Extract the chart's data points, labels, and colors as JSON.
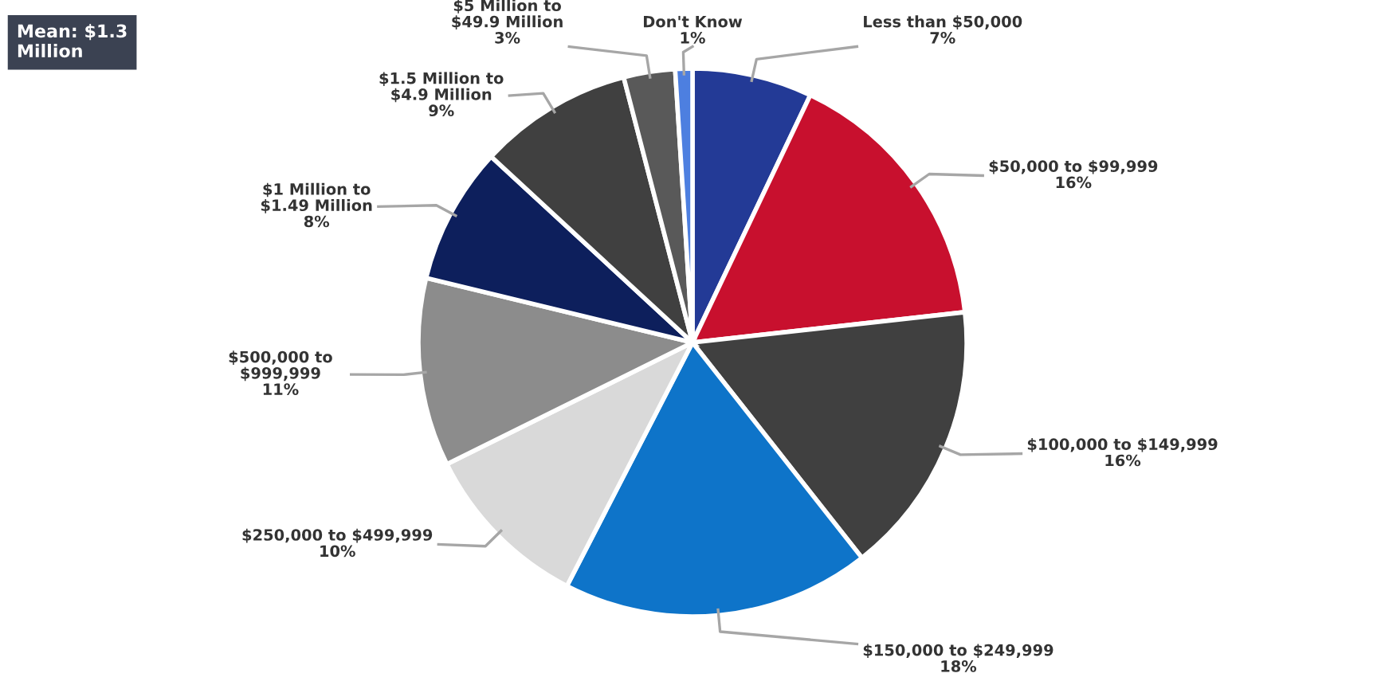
{
  "chart_data": {
    "type": "pie",
    "categories": [
      "Less than $50,000",
      "$50,000 to $99,999",
      "$100,000 to $149,999",
      "$150,000 to $249,999",
      "$250,000 to $499,999",
      "$500,000 to\n$999,999",
      "$1 Million to\n$1.49 Million",
      "$1.5 Million to\n$4.9 Million",
      "$5 Million to\n$49.9 Million",
      "Don't Know"
    ],
    "values": [
      7,
      16,
      16,
      18,
      10,
      11,
      8,
      9,
      3,
      1
    ],
    "value_labels": [
      "7%",
      "16%",
      "16%",
      "18%",
      "10%",
      "11%",
      "8%",
      "9%",
      "3%",
      "1%"
    ],
    "colors": [
      "#233a96",
      "#c8102e",
      "#404040",
      "#0e74c9",
      "#d9d9d9",
      "#8c8c8c",
      "#0d1f5c",
      "#404040",
      "#595959",
      "#4d7fe0"
    ],
    "annotations": [
      "Mean: $1.3\nMillion"
    ]
  }
}
